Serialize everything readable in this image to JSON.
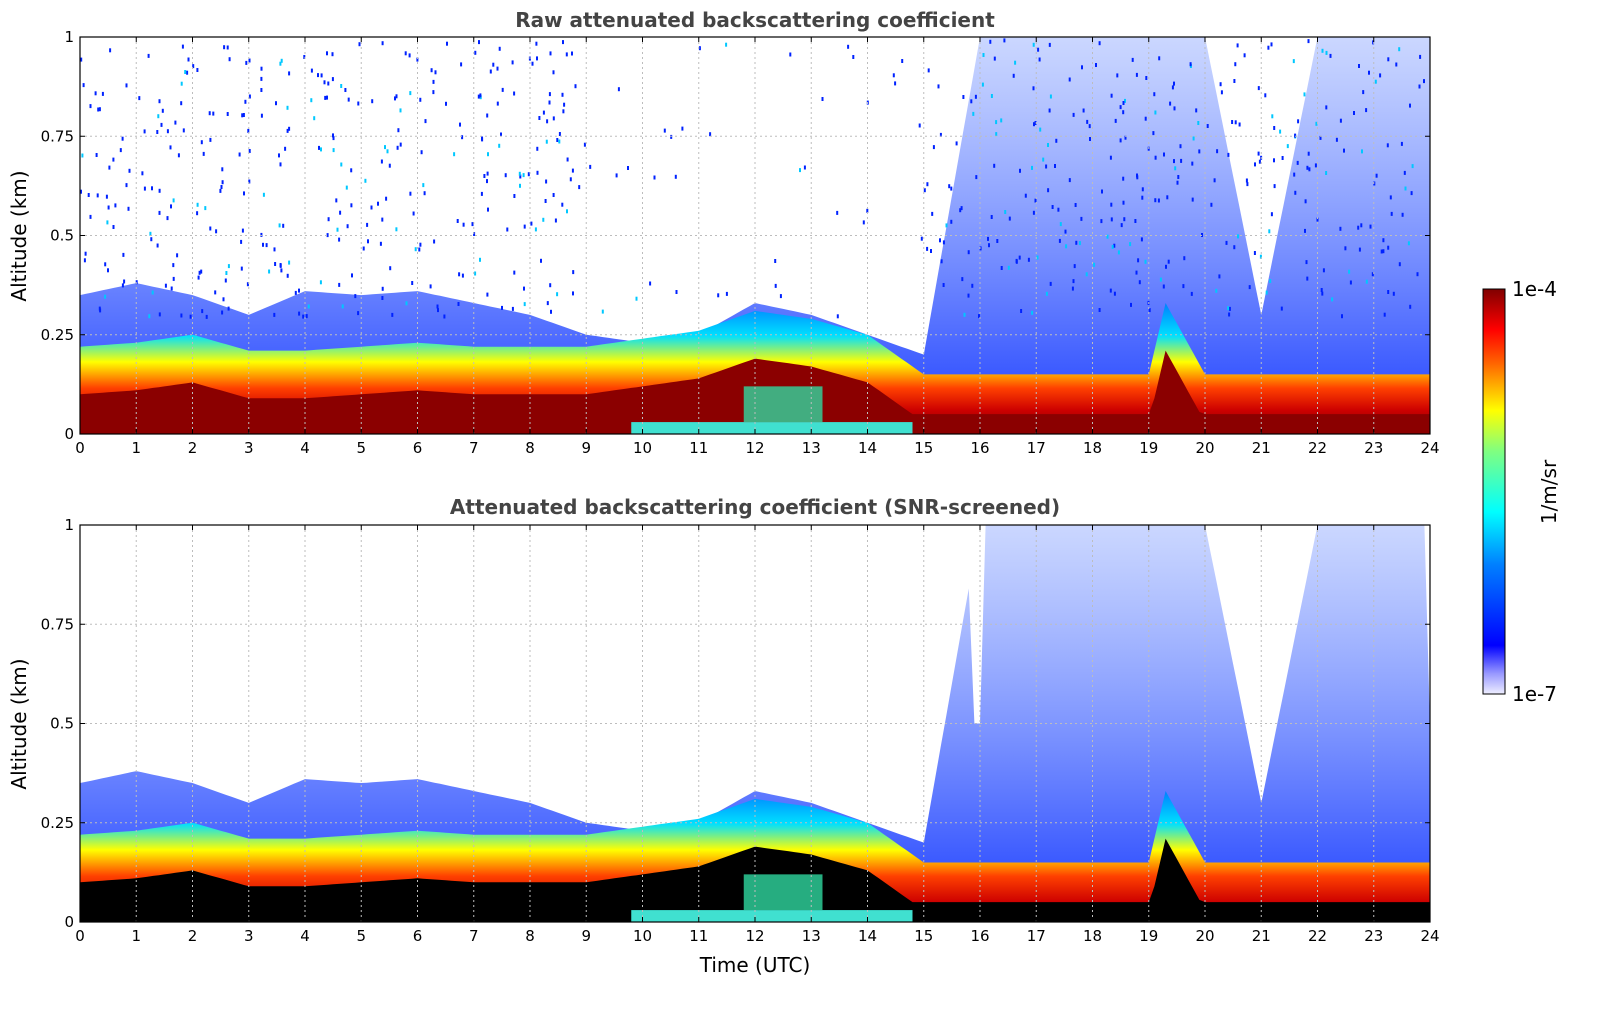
{
  "chart_data": [
    {
      "type": "heatmap",
      "title": "Raw attenuated backscattering coefficient",
      "xlabel": "",
      "ylabel": "Altitude (km)",
      "xlim": [
        0,
        24
      ],
      "ylim": [
        0,
        1
      ],
      "x_ticks": [
        "0",
        "1",
        "2",
        "3",
        "4",
        "5",
        "6",
        "7",
        "8",
        "9",
        "10",
        "11",
        "12",
        "13",
        "14",
        "15",
        "16",
        "17",
        "18",
        "19",
        "20",
        "21",
        "22",
        "23",
        "24"
      ],
      "y_ticks": [
        "0",
        "0.25",
        "0.5",
        "0.75",
        "1"
      ],
      "grid": true,
      "screened": false,
      "features": {
        "boundary_layer_top_km": [
          [
            0,
            0.17
          ],
          [
            1,
            0.18
          ],
          [
            2,
            0.2
          ],
          [
            3,
            0.16
          ],
          [
            4,
            0.16
          ],
          [
            5,
            0.17
          ],
          [
            6,
            0.18
          ],
          [
            7,
            0.17
          ],
          [
            8,
            0.17
          ],
          [
            9,
            0.17
          ],
          [
            10,
            0.19
          ],
          [
            11,
            0.21
          ],
          [
            12,
            0.26
          ],
          [
            13,
            0.24
          ],
          [
            14,
            0.2
          ],
          [
            15,
            0.1
          ],
          [
            16,
            0.1
          ],
          [
            17,
            0.1
          ],
          [
            18,
            0.1
          ],
          [
            19,
            0.1
          ],
          [
            19.3,
            0.28
          ],
          [
            20,
            0.1
          ],
          [
            21,
            0.1
          ],
          [
            22,
            0.1
          ],
          [
            23,
            0.1
          ],
          [
            24,
            0.1
          ]
        ],
        "signal_top_km": [
          [
            0,
            0.35
          ],
          [
            1,
            0.38
          ],
          [
            2,
            0.35
          ],
          [
            3,
            0.3
          ],
          [
            4,
            0.36
          ],
          [
            5,
            0.35
          ],
          [
            6,
            0.36
          ],
          [
            7,
            0.33
          ],
          [
            8,
            0.3
          ],
          [
            9,
            0.25
          ],
          [
            10,
            0.23
          ],
          [
            11,
            0.25
          ],
          [
            12,
            0.33
          ],
          [
            13,
            0.3
          ],
          [
            14,
            0.25
          ],
          [
            15,
            0.2
          ],
          [
            16,
            1.0
          ],
          [
            18,
            1.0
          ],
          [
            20,
            1.0
          ],
          [
            21,
            0.3
          ],
          [
            22,
            1.0
          ],
          [
            24,
            1.0
          ]
        ]
      }
    },
    {
      "type": "heatmap",
      "title": "Attenuated backscattering coefficient (SNR-screened)",
      "xlabel": "Time (UTC)",
      "ylabel": "Altitude (km)",
      "xlim": [
        0,
        24
      ],
      "ylim": [
        0,
        1
      ],
      "x_ticks": [
        "0",
        "1",
        "2",
        "3",
        "4",
        "5",
        "6",
        "7",
        "8",
        "9",
        "10",
        "11",
        "12",
        "13",
        "14",
        "15",
        "16",
        "17",
        "18",
        "19",
        "20",
        "21",
        "22",
        "23",
        "24"
      ],
      "y_ticks": [
        "0",
        "0.25",
        "0.5",
        "0.75",
        "1"
      ],
      "grid": true,
      "screened": true,
      "masked_color": "#000000"
    }
  ],
  "colorbar": {
    "label": "1/m/sr",
    "min_label": "1e-7",
    "max_label": "1e-4",
    "scale": "log",
    "colormap": "jet",
    "colors": [
      "#eeeeff",
      "#0000ff",
      "#00ffff",
      "#ffff00",
      "#ff0000",
      "#800000"
    ]
  }
}
